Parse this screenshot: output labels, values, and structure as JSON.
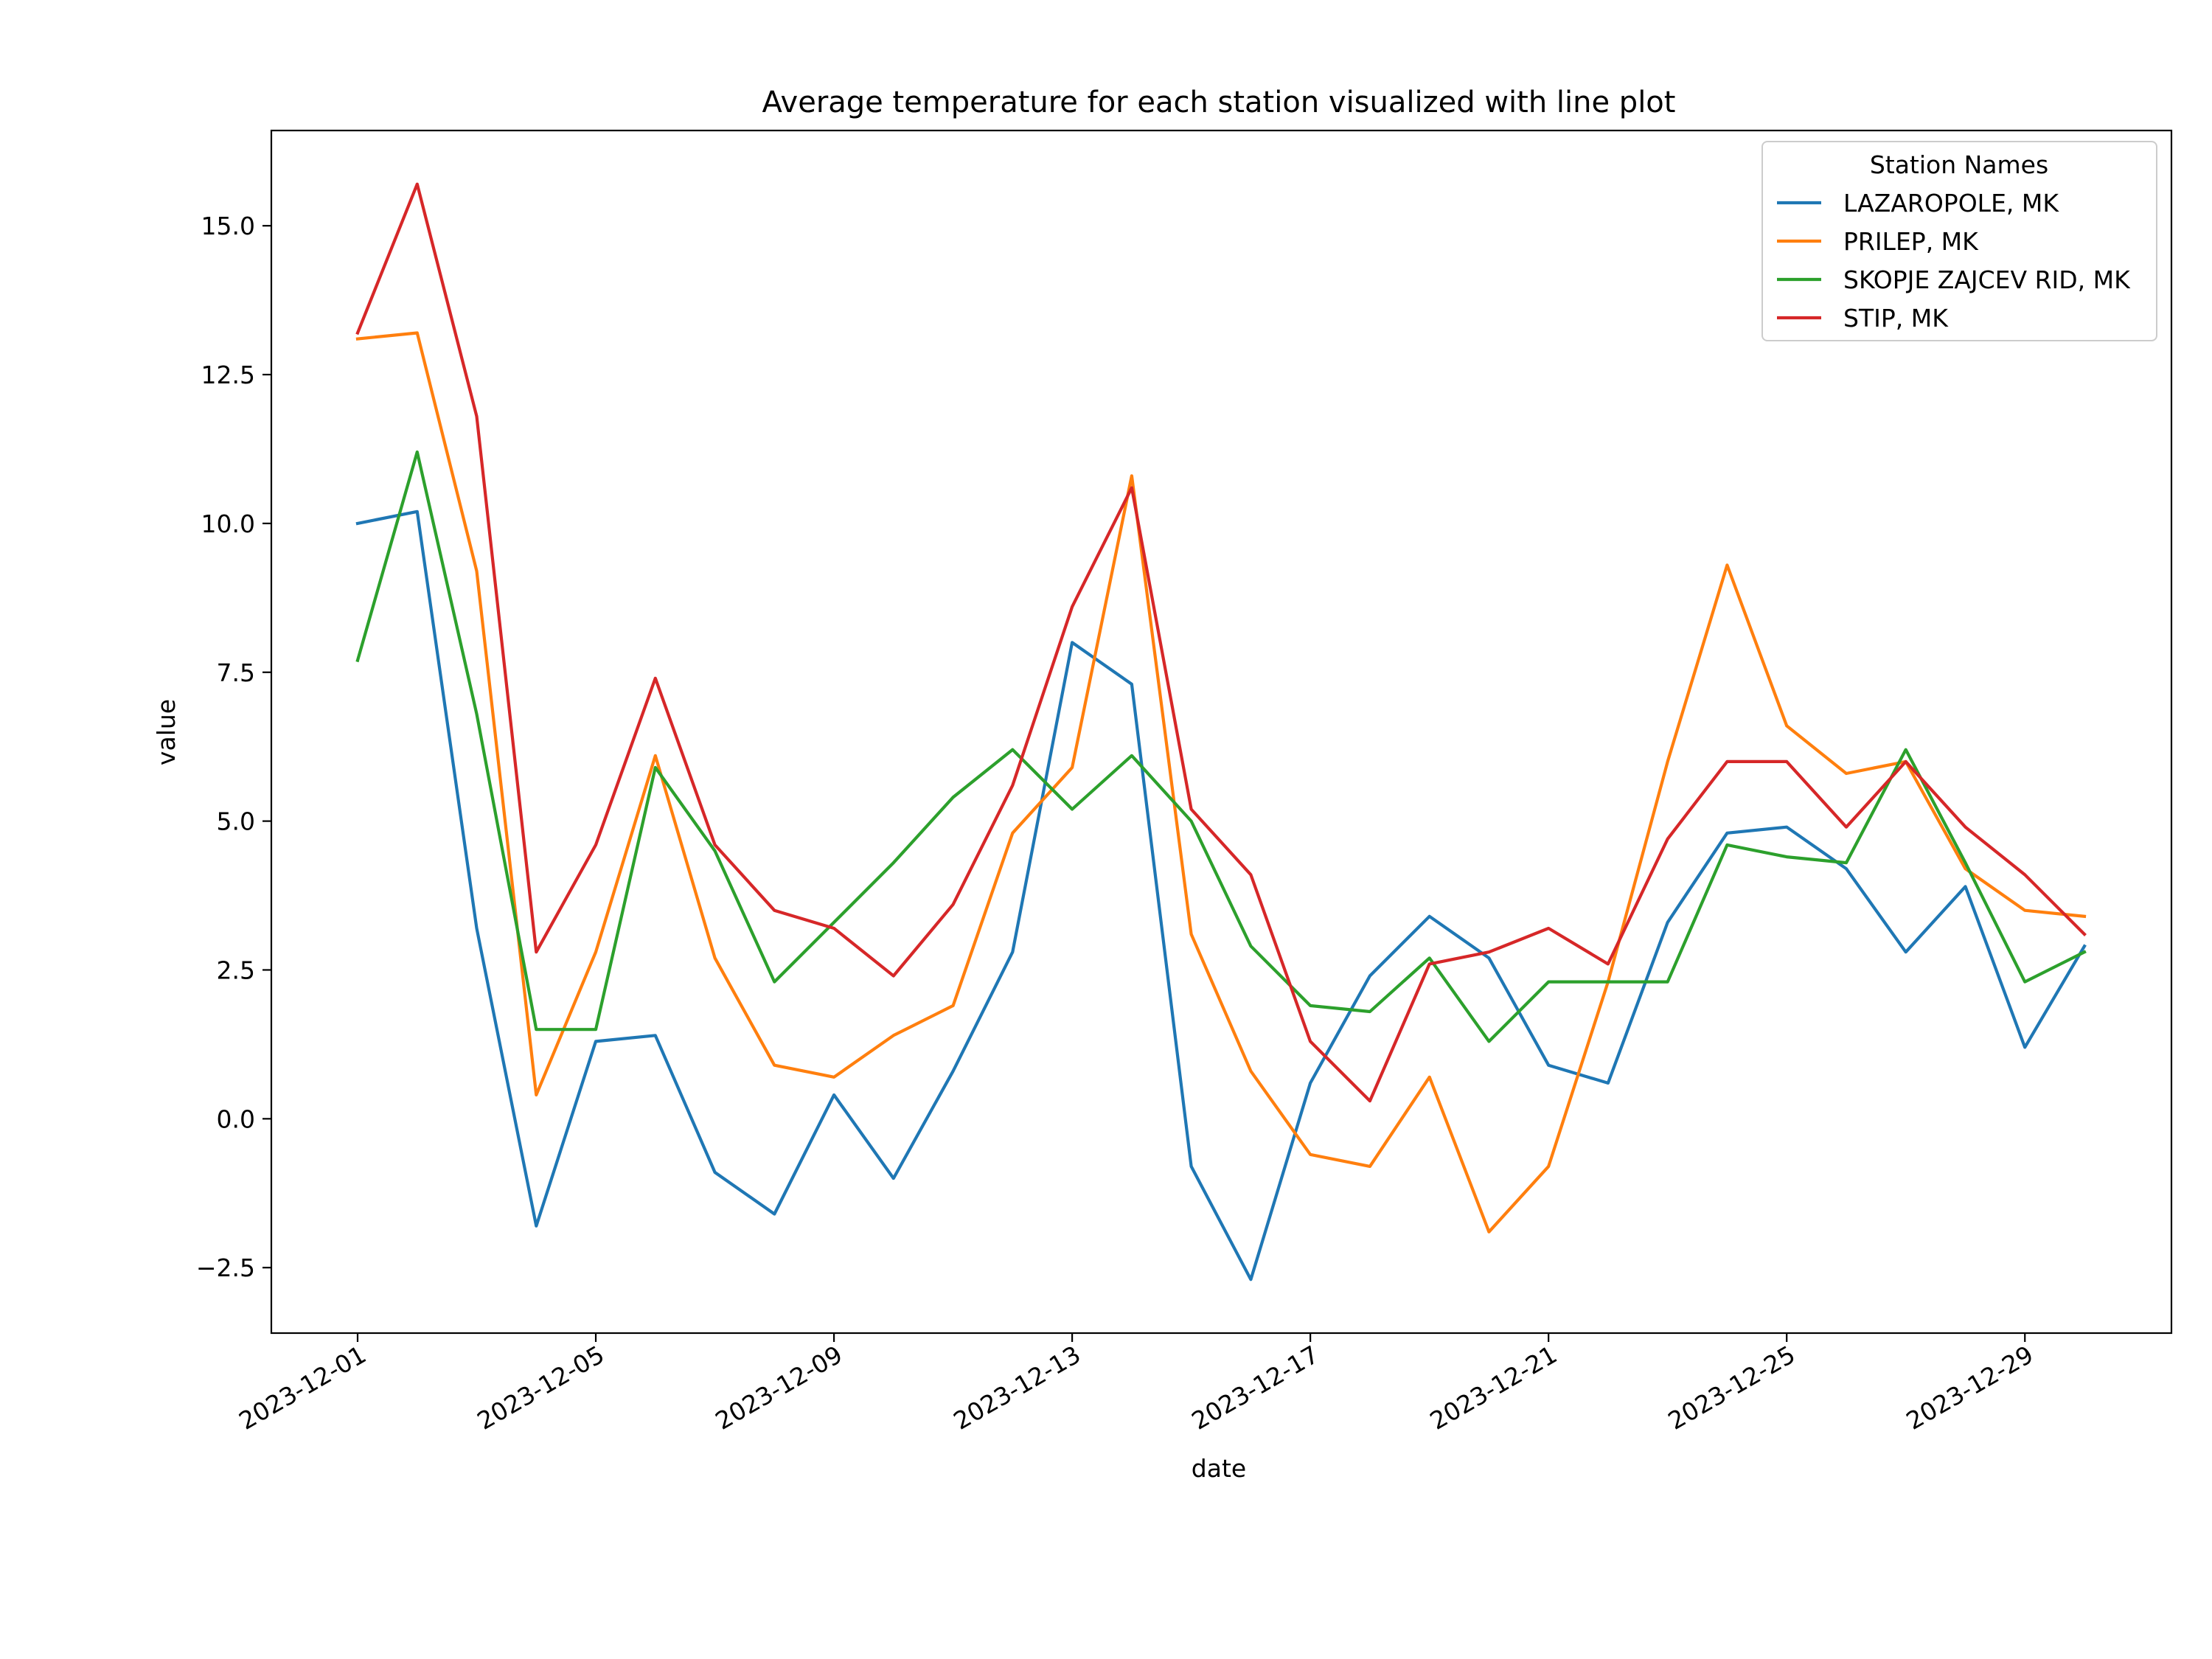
{
  "chart_data": {
    "type": "line",
    "title": "Average temperature for each station visualized with line plot",
    "xlabel": "date",
    "ylabel": "value",
    "x": [
      "2023-12-01",
      "2023-12-02",
      "2023-12-03",
      "2023-12-04",
      "2023-12-05",
      "2023-12-06",
      "2023-12-07",
      "2023-12-08",
      "2023-12-09",
      "2023-12-10",
      "2023-12-11",
      "2023-12-12",
      "2023-12-13",
      "2023-12-14",
      "2023-12-15",
      "2023-12-16",
      "2023-12-17",
      "2023-12-18",
      "2023-12-19",
      "2023-12-20",
      "2023-12-21",
      "2023-12-22",
      "2023-12-23",
      "2023-12-24",
      "2023-12-25",
      "2023-12-26",
      "2023-12-27",
      "2023-12-28",
      "2023-12-29",
      "2023-12-30"
    ],
    "x_ticks": [
      "2023-12-01",
      "2023-12-05",
      "2023-12-09",
      "2023-12-13",
      "2023-12-17",
      "2023-12-21",
      "2023-12-25",
      "2023-12-29"
    ],
    "y_ticks": [
      -2.5,
      0.0,
      2.5,
      5.0,
      7.5,
      10.0,
      12.5,
      15.0
    ],
    "y_tick_labels": [
      "−2.5",
      "0.0",
      "2.5",
      "5.0",
      "7.5",
      "10.0",
      "12.5",
      "15.0"
    ],
    "ylim": [
      -3.6,
      16.6
    ],
    "grid": false,
    "legend": {
      "title": "Station Names",
      "position": "top-right"
    },
    "series": [
      {
        "name": "LAZAROPOLE, MK",
        "color": "#1f77b4",
        "values": [
          10.0,
          10.2,
          3.2,
          -1.8,
          1.3,
          1.4,
          -0.9,
          -1.6,
          0.4,
          -1.0,
          0.8,
          2.8,
          8.0,
          7.3,
          -0.8,
          -2.7,
          0.6,
          2.4,
          3.4,
          2.7,
          0.9,
          0.6,
          3.3,
          4.8,
          4.9,
          4.2,
          2.8,
          3.9,
          1.2,
          2.9
        ]
      },
      {
        "name": "PRILEP, MK",
        "color": "#ff7f0e",
        "values": [
          13.1,
          13.2,
          9.2,
          0.4,
          2.8,
          6.1,
          2.7,
          0.9,
          0.7,
          1.4,
          1.9,
          4.8,
          5.9,
          10.8,
          3.1,
          0.8,
          -0.6,
          -0.8,
          0.7,
          -1.9,
          -0.8,
          2.3,
          6.0,
          9.3,
          6.6,
          5.8,
          6.0,
          4.2,
          3.5,
          3.4
        ]
      },
      {
        "name": "SKOPJE ZAJCEV RID, MK",
        "color": "#2ca02c",
        "values": [
          7.7,
          11.2,
          6.8,
          1.5,
          1.5,
          5.9,
          4.5,
          2.3,
          3.3,
          4.3,
          5.4,
          6.2,
          5.2,
          6.1,
          5.0,
          2.9,
          1.9,
          1.8,
          2.7,
          1.3,
          2.3,
          2.3,
          2.3,
          4.6,
          4.4,
          4.3,
          6.2,
          4.3,
          2.3,
          2.8
        ]
      },
      {
        "name": "STIP, MK",
        "color": "#d62728",
        "values": [
          13.2,
          15.7,
          11.8,
          2.8,
          4.6,
          7.4,
          4.6,
          3.5,
          3.2,
          2.4,
          3.6,
          5.6,
          8.6,
          10.6,
          5.2,
          4.1,
          1.3,
          0.3,
          2.6,
          2.8,
          3.2,
          2.6,
          4.7,
          6.0,
          6.0,
          4.9,
          6.0,
          4.9,
          4.1,
          3.1
        ]
      }
    ]
  }
}
